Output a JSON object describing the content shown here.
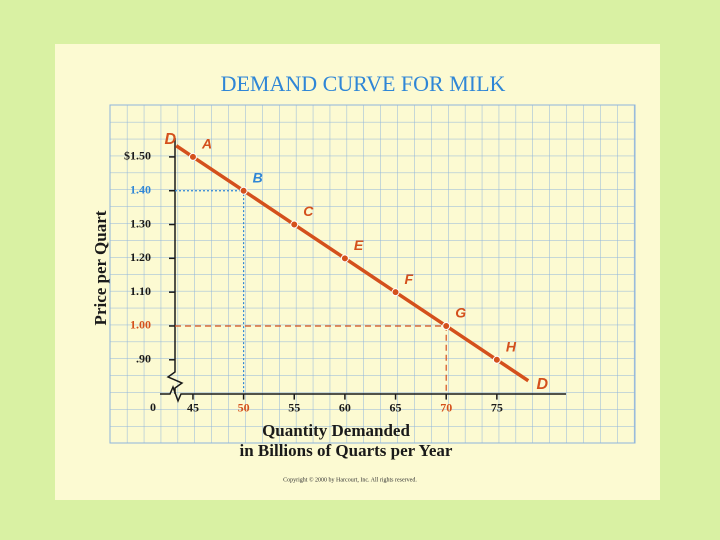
{
  "chart_data": {
    "type": "line",
    "title": "DEMAND CURVE FOR MILK",
    "y_label": "Price per Quart",
    "x_label": [
      "Quantity Demanded",
      "in Billions of Quarts per Year"
    ],
    "x_origin_label": "0",
    "curve_label": "D",
    "footer": "Copyright © 2000 by Harcourt, Inc. All rights reserved.",
    "x": [
      45,
      50,
      55,
      60,
      65,
      70,
      75
    ],
    "series": [
      {
        "name": "Demand",
        "color": "#d4501c",
        "values": [
          1.5,
          1.4,
          1.3,
          1.2,
          1.1,
          1.0,
          0.9
        ],
        "labels": [
          "A",
          "B",
          "C",
          "E",
          "F",
          "G",
          "H"
        ],
        "label_colors": [
          "#d4501c",
          "#2f86d6",
          "#d4501c",
          "#d4501c",
          "#d4501c",
          "#d4501c",
          "#d4501c"
        ]
      }
    ],
    "xlim": [
      41.5,
      81.5
    ],
    "ylim": [
      0.8,
      1.55
    ],
    "xticks": [
      45,
      50,
      55,
      60,
      65,
      70,
      75
    ],
    "xtick_colors": [
      "#1a1a1a",
      "#d4501c",
      "#1a1a1a",
      "#1a1a1a",
      "#1a1a1a",
      "#d4501c",
      "#1a1a1a"
    ],
    "yticks": [
      {
        "value": 1.5,
        "label": "$1.50"
      },
      {
        "value": 1.4,
        "label": "1.40"
      },
      {
        "value": 1.3,
        "label": "1.30"
      },
      {
        "value": 1.2,
        "label": "1.20"
      },
      {
        "value": 1.1,
        "label": "1.10"
      },
      {
        "value": 1.0,
        "label": "1.00"
      },
      {
        "value": 0.9,
        "label": ".90"
      }
    ],
    "ytick_colors": [
      "#1a1a1a",
      "#2f86d6",
      "#1a1a1a",
      "#1a1a1a",
      "#1a1a1a",
      "#d4501c",
      "#1a1a1a"
    ],
    "guides": [
      {
        "point": 1,
        "color": "#2f86d6",
        "dash": "2 2"
      },
      {
        "point": 5,
        "color": "#d4501c",
        "dash": "6 4"
      }
    ]
  }
}
